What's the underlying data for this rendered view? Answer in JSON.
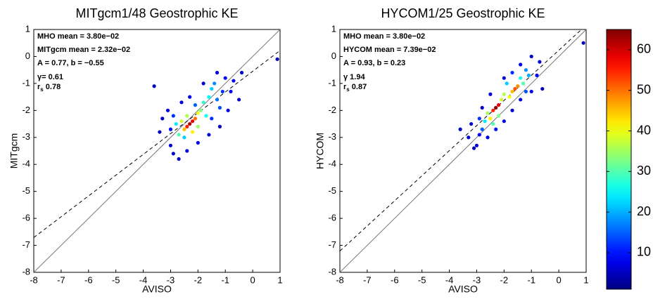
{
  "chart_data": [
    {
      "type": "scatter",
      "title": "MITgcm1/48 Geostrophic KE",
      "x_label": "AVISO",
      "y_label": "MITgcm",
      "xlim": [
        -8,
        1
      ],
      "ylim": [
        -8,
        1
      ],
      "xticks": [
        -8,
        -7,
        -6,
        -5,
        -4,
        -3,
        -2,
        -1,
        0,
        1
      ],
      "yticks": [
        -8,
        -7,
        -6,
        -5,
        -4,
        -3,
        -2,
        -1,
        0,
        1
      ],
      "identity_line": true,
      "fit_line": {
        "slope": 0.77,
        "intercept": -0.55
      },
      "annotations": [
        "MHO mean = 3.80e−02",
        "MITgcm mean = 2.32e−02",
        "A = 0.77, b = −0.55",
        "γ= 0.61",
        {
          "symbol": "r",
          "subscript": "s",
          "text": " 0.78"
        }
      ],
      "x": [
        -2.3,
        -2.2,
        -2.4,
        -2.1,
        -2.5,
        -2.0,
        -2.6,
        -2.2,
        -1.9,
        -2.7,
        -1.8,
        -2.0,
        -2.4,
        -1.6,
        -1.5,
        -2.8,
        -1.7,
        -2.5,
        -1.4,
        -1.3,
        -3.6,
        -3.1,
        -3.3,
        -3.0,
        -2.9,
        -2.7,
        -2.4,
        -2.0,
        -1.6,
        -1.2,
        -0.9,
        -0.8,
        -1.0,
        -1.3,
        -1.8,
        -2.3,
        -2.6,
        -0.5,
        -0.4,
        0.9,
        -3.4,
        -1.1,
        -1.2,
        -2.9,
        -3.0,
        -2.1,
        -1.5,
        -0.7
      ],
      "y": [
        -2.5,
        -2.4,
        -2.6,
        -2.3,
        -2.7,
        -2.1,
        -2.4,
        -2.8,
        -2.0,
        -2.9,
        -1.7,
        -2.6,
        -2.2,
        -1.5,
        -1.2,
        -2.5,
        -2.2,
        -3.0,
        -1.0,
        -1.6,
        -1.1,
        -2.0,
        -2.3,
        -3.3,
        -3.6,
        -3.8,
        -3.5,
        -3.2,
        -2.9,
        -2.6,
        -2.0,
        -1.3,
        -0.8,
        -0.6,
        -1.0,
        -1.5,
        -1.7,
        -1.6,
        -0.6,
        -0.1,
        -2.8,
        -1.3,
        -1.9,
        -2.2,
        -2.7,
        -1.8,
        -2.3,
        -0.9
      ],
      "density": [
        62,
        58,
        55,
        50,
        45,
        40,
        38,
        42,
        33,
        30,
        28,
        35,
        36,
        25,
        22,
        24,
        26,
        22,
        18,
        16,
        5,
        8,
        6,
        7,
        6,
        5,
        7,
        8,
        6,
        5,
        7,
        8,
        9,
        7,
        6,
        8,
        7,
        5,
        6,
        4,
        5,
        12,
        14,
        12,
        10,
        15,
        12,
        8
      ]
    },
    {
      "type": "scatter",
      "title": "HYCOM1/25 Geostrophic KE",
      "x_label": "AVISO",
      "y_label": "HYCOM",
      "xlim": [
        -8,
        1
      ],
      "ylim": [
        -8,
        1
      ],
      "xticks": [
        -8,
        -7,
        -6,
        -5,
        -4,
        -3,
        -2,
        -1,
        0,
        1
      ],
      "yticks": [
        -8,
        -7,
        -6,
        -5,
        -4,
        -3,
        -2,
        -1,
        0,
        1
      ],
      "identity_line": true,
      "fit_line": {
        "slope": 0.93,
        "intercept": 0.23
      },
      "annotations": [
        "MHO mean = 3.80e−02",
        "HYCOM mean = 7.39e−02",
        "A = 0.93, b = 0.23",
        "γ 1.94",
        {
          "symbol": "r",
          "subscript": "s",
          "text": " 0.87"
        }
      ],
      "x": [
        -2.3,
        -2.2,
        -2.4,
        -1.6,
        -1.5,
        -1.7,
        -2.5,
        -2.1,
        -2.6,
        -2.0,
        -1.8,
        -1.3,
        -2.4,
        -1.4,
        -2.7,
        -2.2,
        -1.1,
        -1.2,
        -2.8,
        -1.9,
        -3.6,
        -3.3,
        -3.0,
        -2.9,
        -3.2,
        -2.6,
        -2.3,
        -2.0,
        -1.7,
        -1.4,
        -1.0,
        -0.8,
        -0.7,
        -1.0,
        -1.4,
        -2.0,
        -2.5,
        -2.8,
        -0.6,
        0.9,
        -3.1,
        -2.9,
        -1.2,
        -1.7
      ],
      "y": [
        -1.9,
        -1.8,
        -2.0,
        -1.2,
        -1.1,
        -1.3,
        -2.3,
        -1.6,
        -2.1,
        -1.4,
        -1.5,
        -1.0,
        -2.5,
        -0.8,
        -2.4,
        -2.2,
        -0.7,
        -0.5,
        -2.7,
        -1.0,
        -2.7,
        -3.0,
        -3.3,
        -2.9,
        -2.5,
        -3.0,
        -2.7,
        -2.4,
        -2.0,
        -1.6,
        -1.3,
        -0.7,
        -0.2,
        0.0,
        -0.3,
        -0.8,
        -1.4,
        -1.9,
        -1.2,
        0.5,
        -3.4,
        -2.3,
        -1.3,
        -0.6
      ],
      "density": [
        64,
        58,
        55,
        52,
        48,
        45,
        42,
        38,
        35,
        36,
        40,
        30,
        30,
        26,
        24,
        33,
        20,
        18,
        15,
        22,
        5,
        6,
        7,
        9,
        6,
        8,
        10,
        8,
        6,
        7,
        8,
        9,
        7,
        6,
        8,
        6,
        7,
        6,
        5,
        4,
        5,
        12,
        14,
        12
      ]
    }
  ],
  "colorbar": {
    "clim": [
      1,
      65
    ],
    "ticks": [
      10,
      20,
      30,
      40,
      50,
      60
    ]
  }
}
